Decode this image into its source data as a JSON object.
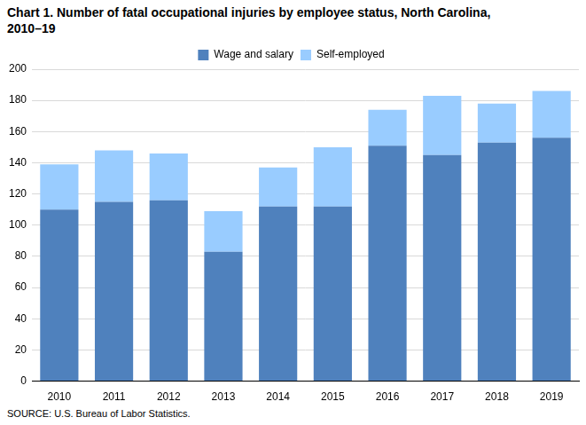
{
  "chart_data": {
    "type": "bar",
    "title": "Chart 1. Number of fatal occupational injuries by employee status, North Carolina, 2010–19",
    "source": "SOURCE: U.S. Bureau of Labor Statistics.",
    "categories": [
      "2010",
      "2011",
      "2012",
      "2013",
      "2014",
      "2015",
      "2016",
      "2017",
      "2018",
      "2019"
    ],
    "series": [
      {
        "name": "Wage and salary",
        "color": "#4f81bd",
        "values": [
          110,
          115,
          116,
          83,
          112,
          112,
          151,
          145,
          153,
          156
        ]
      },
      {
        "name": "Self-employed",
        "color": "#99ccff",
        "values": [
          29,
          33,
          30,
          26,
          25,
          38,
          23,
          38,
          25,
          30
        ]
      }
    ],
    "ylim": [
      0,
      200
    ],
    "yticks": [
      0,
      20,
      40,
      60,
      80,
      100,
      120,
      140,
      160,
      180,
      200
    ],
    "grid": true,
    "stacked": true,
    "legend": "top"
  }
}
